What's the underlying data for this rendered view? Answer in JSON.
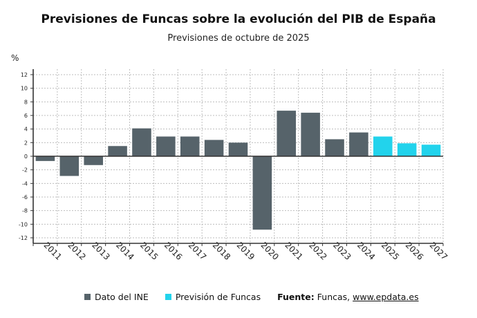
{
  "chart_data": {
    "type": "bar",
    "title": "Previsiones de Funcas sobre la evolución del PIB de España",
    "subtitle": "Previsiones de octubre de 2025",
    "ylabel": "%",
    "xlabel": "",
    "ylim": [
      -12,
      12
    ],
    "yticks": [
      12,
      10,
      8,
      6,
      4,
      2,
      0,
      -2,
      -4,
      -6,
      -8,
      -10,
      -12
    ],
    "grid": true,
    "legend_position": "bottom",
    "categories": [
      "2011",
      "2012",
      "2013",
      "2014",
      "2015",
      "2016",
      "2017",
      "2018",
      "2019",
      "2020",
      "2021",
      "2022",
      "2023",
      "2024",
      "2025",
      "2026",
      "2027"
    ],
    "series": [
      {
        "name": "Dato del INE",
        "color": "#56636a",
        "values": [
          -0.7,
          -2.9,
          -1.3,
          1.5,
          4.1,
          2.9,
          2.9,
          2.4,
          2.0,
          -10.8,
          6.7,
          6.4,
          2.5,
          3.5,
          null,
          null,
          null
        ]
      },
      {
        "name": "Previsión de Funcas",
        "color": "#22d3ec",
        "values": [
          null,
          null,
          null,
          null,
          null,
          null,
          null,
          null,
          null,
          null,
          null,
          null,
          null,
          null,
          2.9,
          1.9,
          1.7
        ]
      }
    ]
  },
  "source": {
    "label": "Fuente:",
    "text": "Funcas,",
    "link": "www.epdata.es"
  }
}
